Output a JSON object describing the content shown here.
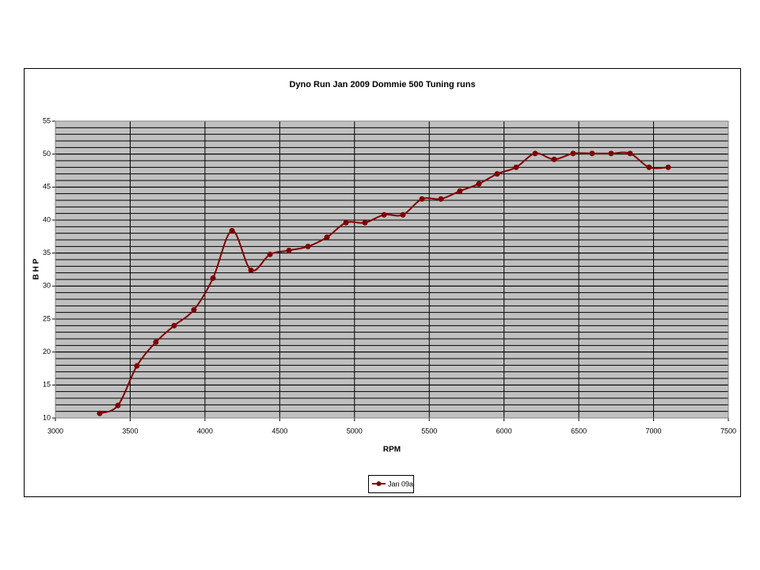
{
  "chart_data": {
    "type": "line",
    "title": "Dyno Run Jan 2009 Dommie 500 Tuning runs",
    "x_label": "RPM",
    "y_label": "B H P",
    "x": [
      3296,
      3418,
      3545,
      3672,
      3794,
      3926,
      4054,
      4181,
      4308,
      4435,
      4562,
      4689,
      4816,
      4943,
      5070,
      5198,
      5324,
      5451,
      5578,
      5705,
      5832,
      5954,
      6081,
      6208,
      6335,
      6462,
      6589,
      6716,
      6843,
      6970,
      7098
    ],
    "series": [
      {
        "name": "Jan 09a",
        "color": "#800000",
        "values": [
          10.7,
          11.9,
          17.9,
          21.5,
          24.0,
          26.4,
          31.2,
          38.4,
          32.4,
          34.8,
          35.4,
          36.0,
          37.4,
          39.6,
          39.6,
          40.8,
          40.8,
          43.2,
          43.2,
          44.4,
          45.5,
          47.0,
          48.0,
          50.1,
          49.2,
          50.1,
          50.1,
          50.1,
          50.1,
          48.0,
          48.0
        ]
      }
    ],
    "xlim": [
      3000,
      7500
    ],
    "xticks": [
      3000,
      3500,
      4000,
      4500,
      5000,
      5500,
      6000,
      6500,
      7000,
      7500
    ],
    "ylim": [
      10,
      55
    ],
    "yticks": [
      10,
      15,
      20,
      25,
      30,
      35,
      40,
      45,
      50,
      55
    ],
    "grid": true,
    "minor_grid": true,
    "plot_background": "#c0c0c0",
    "legend": "bottom"
  }
}
